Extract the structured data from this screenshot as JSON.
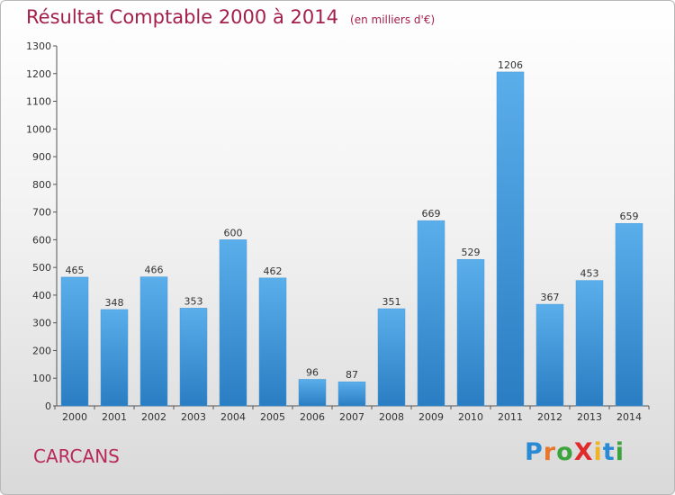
{
  "header": {
    "title": "Résultat Comptable 2000 à 2014",
    "unit": "(en milliers d'€)"
  },
  "place": "CARCANS",
  "logo": {
    "text": "ProXiti",
    "letters": [
      {
        "ch": "P",
        "color": "#2a8bd4"
      },
      {
        "ch": "r",
        "color": "#e8762b"
      },
      {
        "ch": "o",
        "color": "#3da33d"
      },
      {
        "ch": "X",
        "color": "#e02b2b"
      },
      {
        "ch": "i",
        "color": "#f0b326"
      },
      {
        "ch": "t",
        "color": "#2a8bd4"
      },
      {
        "ch": "i",
        "color": "#3da33d"
      }
    ]
  },
  "colors": {
    "bar_top": "#5aaeea",
    "bar_bottom": "#2a7dc2",
    "title": "#a3204a",
    "place": "#b8285a"
  },
  "chart_data": {
    "type": "bar",
    "title": "Résultat Comptable 2000 à 2014",
    "categories": [
      "2000",
      "2001",
      "2002",
      "2003",
      "2004",
      "2005",
      "2006",
      "2007",
      "2008",
      "2009",
      "2010",
      "2011",
      "2012",
      "2013",
      "2014"
    ],
    "values": [
      465,
      348,
      466,
      353,
      600,
      462,
      96,
      87,
      351,
      669,
      529,
      1206,
      367,
      453,
      659
    ],
    "ylim": [
      0,
      1300
    ],
    "yticks": [
      0,
      100,
      200,
      300,
      400,
      500,
      600,
      700,
      800,
      900,
      1000,
      1100,
      1200,
      1300
    ],
    "grid": false,
    "data_labels": true
  }
}
